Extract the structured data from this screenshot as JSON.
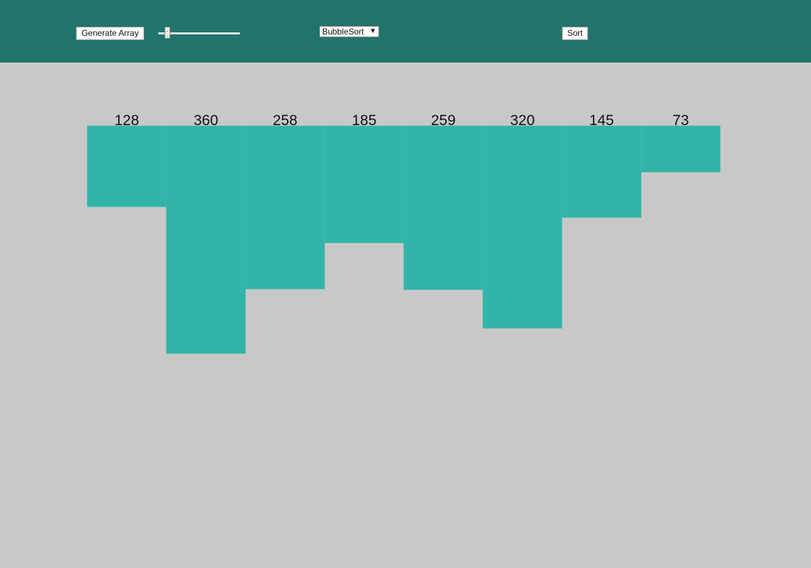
{
  "toolbar": {
    "generate_label": "Generate Array",
    "size_slider": {
      "value": 0.08
    },
    "algorithm_select": {
      "selected": "BubbleSort"
    },
    "sort_label": "Sort"
  },
  "colors": {
    "header_bg": "#21746c",
    "page_bg": "#c8c8c8",
    "bar_fill": "#32b5a8",
    "bar_label": "#111111"
  },
  "chart_data": {
    "type": "bar",
    "categories": [
      "128",
      "360",
      "258",
      "185",
      "259",
      "320",
      "145",
      "73"
    ],
    "values": [
      128,
      360,
      258,
      185,
      259,
      320,
      145,
      73
    ],
    "title": "",
    "xlabel": "",
    "ylabel": "",
    "orientation": "downward",
    "ylim": [
      0,
      360
    ]
  }
}
